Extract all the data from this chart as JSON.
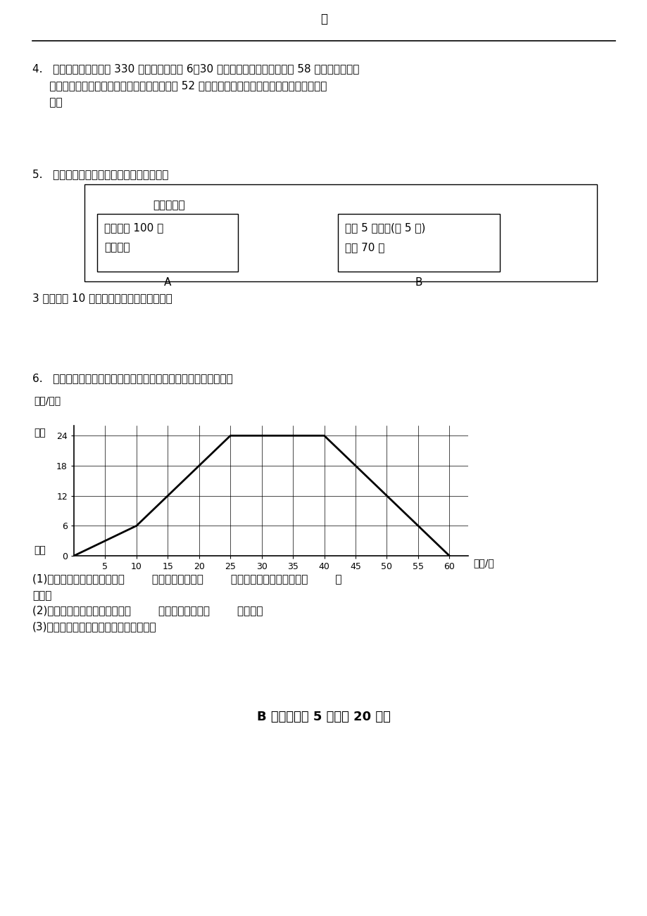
{
  "page_title": "一",
  "background_color": "#ffffff",
  "text_color": "#000000",
  "q4_line1": "4.   金昌到兰州的距离是 330 千米，每天早上 6：30 从兰州出发的客车以每小时 58 千米的速度开往",
  "q4_line2": "     金昌。同时有一辆从金昌出发的客车以每小时 52 千米的速度开往兰州，两车什么时刻在途中相",
  "q4_line3": "     遇？",
  "q5_title": "5.   康辉旅行社国庆期间推出两种优惠方案：",
  "q5_box_title": "长城一日游",
  "q5_box_a_line1": "成人每位 100 元",
  "q5_box_a_line2": "学生半价",
  "q5_box_a_label": "A",
  "q5_box_b_line1": "团体 5 人以上(含 5 人)",
  "q5_box_b_line2": "每位 70 元",
  "q5_box_b_label": "B",
  "q5_question": "3 位老师带 10 名学生，选哪种方案更优惠？",
  "q6_title": "6.   下面一辆汽车从车站开往商场及再返回的路程和时间的关系图。",
  "q6_ylabel_top": "路程/千米",
  "q6_ylabel_shang": "商场",
  "q6_ylabel_che": "车站",
  "q6_xlabel": "时间/分",
  "q6_yticks": [
    0,
    6,
    12,
    18,
    24
  ],
  "q6_xticks": [
    5,
    10,
    15,
    20,
    25,
    30,
    35,
    40,
    45,
    50,
    55,
    60
  ],
  "q6_line_x": [
    0,
    10,
    25,
    40,
    60
  ],
  "q6_line_y": [
    0,
    6,
    24,
    24,
    0
  ],
  "q6_q1": "(1)汽车从车站到商场行驶了（        ）分钟，行驶了（        ）千米，汽车在商场停了（        ）",
  "q6_q1b": "分钟。",
  "q6_q2": "(2)汽车从商场返回车站行驶了（        ）分钟，行驶了（        ）千米。",
  "q6_q3": "(3)你知道汽车在哪一段行驶的速度快吗？",
  "b_section": "B 卷（每小题 5 分，共 20 分）"
}
